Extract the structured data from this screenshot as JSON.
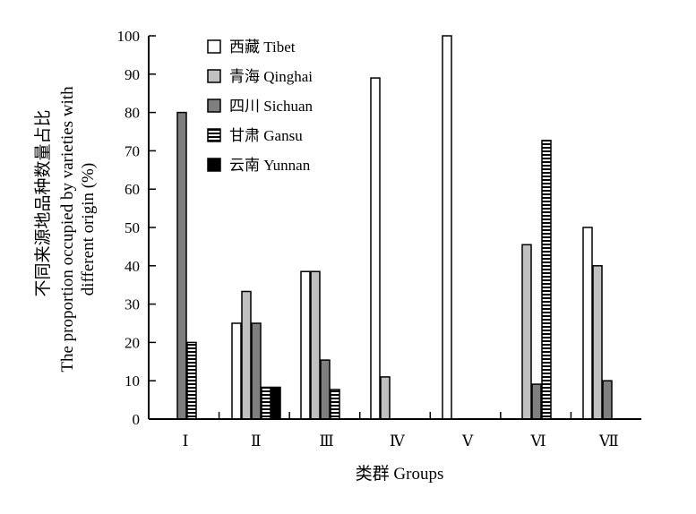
{
  "chart_data": {
    "type": "bar",
    "title": "",
    "xlabel": "类群 Groups",
    "ylabel_lines": [
      "不同来源地品种数量占比",
      "The proportion occupied by varieties with",
      "different origin (%)"
    ],
    "ylim": [
      0,
      100
    ],
    "yticks": [
      0,
      10,
      20,
      30,
      40,
      50,
      60,
      70,
      80,
      90,
      100
    ],
    "grid": false,
    "legend_position": "top-left",
    "categories": [
      "Ⅰ",
      "Ⅱ",
      "Ⅲ",
      "Ⅳ",
      "Ⅴ",
      "Ⅵ",
      "Ⅶ"
    ],
    "series": [
      {
        "name": "西藏 Tibet",
        "fill": "#ffffff",
        "pattern": "solid",
        "values": [
          0,
          25,
          38.5,
          89,
          100,
          0,
          50
        ]
      },
      {
        "name": "青海 Qinghai",
        "fill": "#c0c0c0",
        "pattern": "solid",
        "values": [
          0,
          33.3,
          38.5,
          11,
          0,
          45.5,
          40
        ]
      },
      {
        "name": "四川 Sichuan",
        "fill": "#7f7f7f",
        "pattern": "solid",
        "values": [
          80,
          25,
          15.4,
          0,
          0,
          9.1,
          10
        ]
      },
      {
        "name": "甘肃 Gansu",
        "fill": "#ffffff",
        "pattern": "hstripes",
        "values": [
          20,
          8.3,
          7.7,
          0,
          0,
          72.7,
          0
        ]
      },
      {
        "name": "云南 Yunnan",
        "fill": "#000000",
        "pattern": "solid",
        "values": [
          0,
          8.3,
          0,
          0,
          0,
          0,
          0
        ]
      }
    ]
  }
}
